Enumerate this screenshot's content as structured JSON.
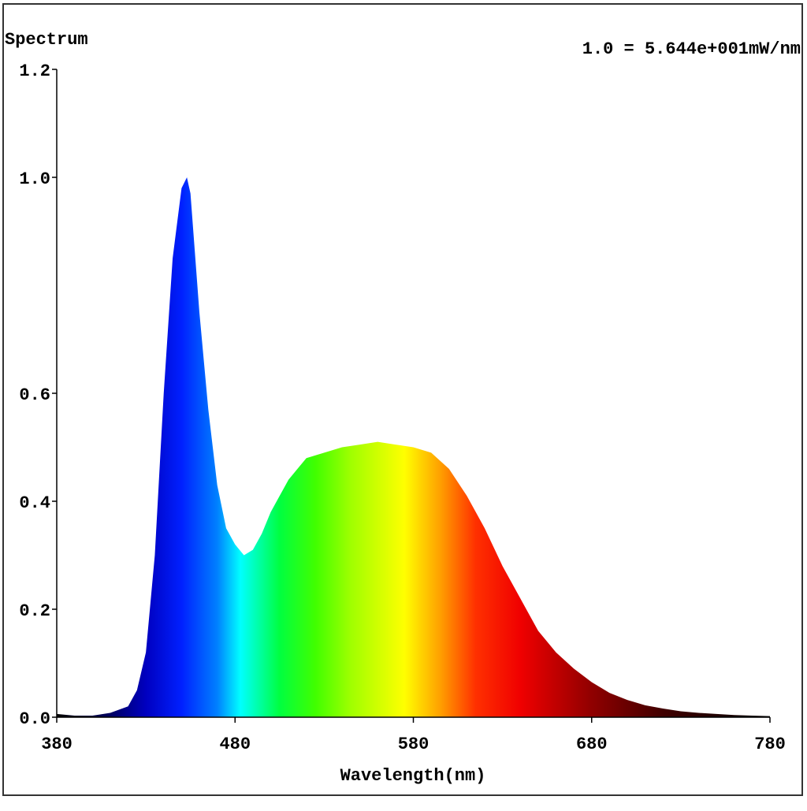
{
  "chart_data": {
    "type": "area",
    "title": "Spectrum",
    "annotation": "1.0 = 5.644e+001mW/nm",
    "x_label": "Wavelength(nm)",
    "x": [
      380,
      390,
      400,
      410,
      420,
      425,
      430,
      435,
      440,
      445,
      450,
      453,
      455,
      460,
      465,
      470,
      475,
      480,
      485,
      490,
      495,
      500,
      510,
      520,
      530,
      540,
      550,
      560,
      570,
      580,
      590,
      600,
      610,
      620,
      630,
      640,
      650,
      660,
      670,
      680,
      690,
      700,
      710,
      720,
      730,
      740,
      750,
      760,
      770,
      780
    ],
    "values": [
      0.006,
      0.003,
      0.003,
      0.008,
      0.02,
      0.05,
      0.12,
      0.3,
      0.6,
      0.85,
      0.98,
      1.0,
      0.97,
      0.75,
      0.57,
      0.43,
      0.35,
      0.32,
      0.3,
      0.31,
      0.34,
      0.38,
      0.44,
      0.48,
      0.49,
      0.5,
      0.505,
      0.51,
      0.505,
      0.5,
      0.49,
      0.46,
      0.41,
      0.35,
      0.28,
      0.22,
      0.16,
      0.12,
      0.09,
      0.065,
      0.045,
      0.032,
      0.022,
      0.016,
      0.011,
      0.008,
      0.006,
      0.004,
      0.003,
      0.002
    ],
    "xlim": [
      380,
      780
    ],
    "ylim": [
      0,
      1.2
    ],
    "xticks": [
      380,
      480,
      580,
      680,
      780
    ],
    "yticks": [
      {
        "value": 0,
        "label": "0.0"
      },
      0.2,
      0.4,
      0.6,
      {
        "value": 1,
        "label": "1.0"
      },
      1.2
    ],
    "fill_gradient": [
      {
        "x": 380,
        "color": "#000000"
      },
      {
        "x": 410,
        "color": "#000060"
      },
      {
        "x": 430,
        "color": "#0000c0"
      },
      {
        "x": 450,
        "color": "#0020ff"
      },
      {
        "x": 470,
        "color": "#0080ff"
      },
      {
        "x": 483,
        "color": "#00ffff"
      },
      {
        "x": 505,
        "color": "#00ff40"
      },
      {
        "x": 525,
        "color": "#40ff00"
      },
      {
        "x": 545,
        "color": "#a0ff00"
      },
      {
        "x": 575,
        "color": "#ffff00"
      },
      {
        "x": 595,
        "color": "#ffa000"
      },
      {
        "x": 615,
        "color": "#ff3000"
      },
      {
        "x": 640,
        "color": "#f00000"
      },
      {
        "x": 680,
        "color": "#900000"
      },
      {
        "x": 720,
        "color": "#400000"
      },
      {
        "x": 780,
        "color": "#000000"
      }
    ]
  }
}
